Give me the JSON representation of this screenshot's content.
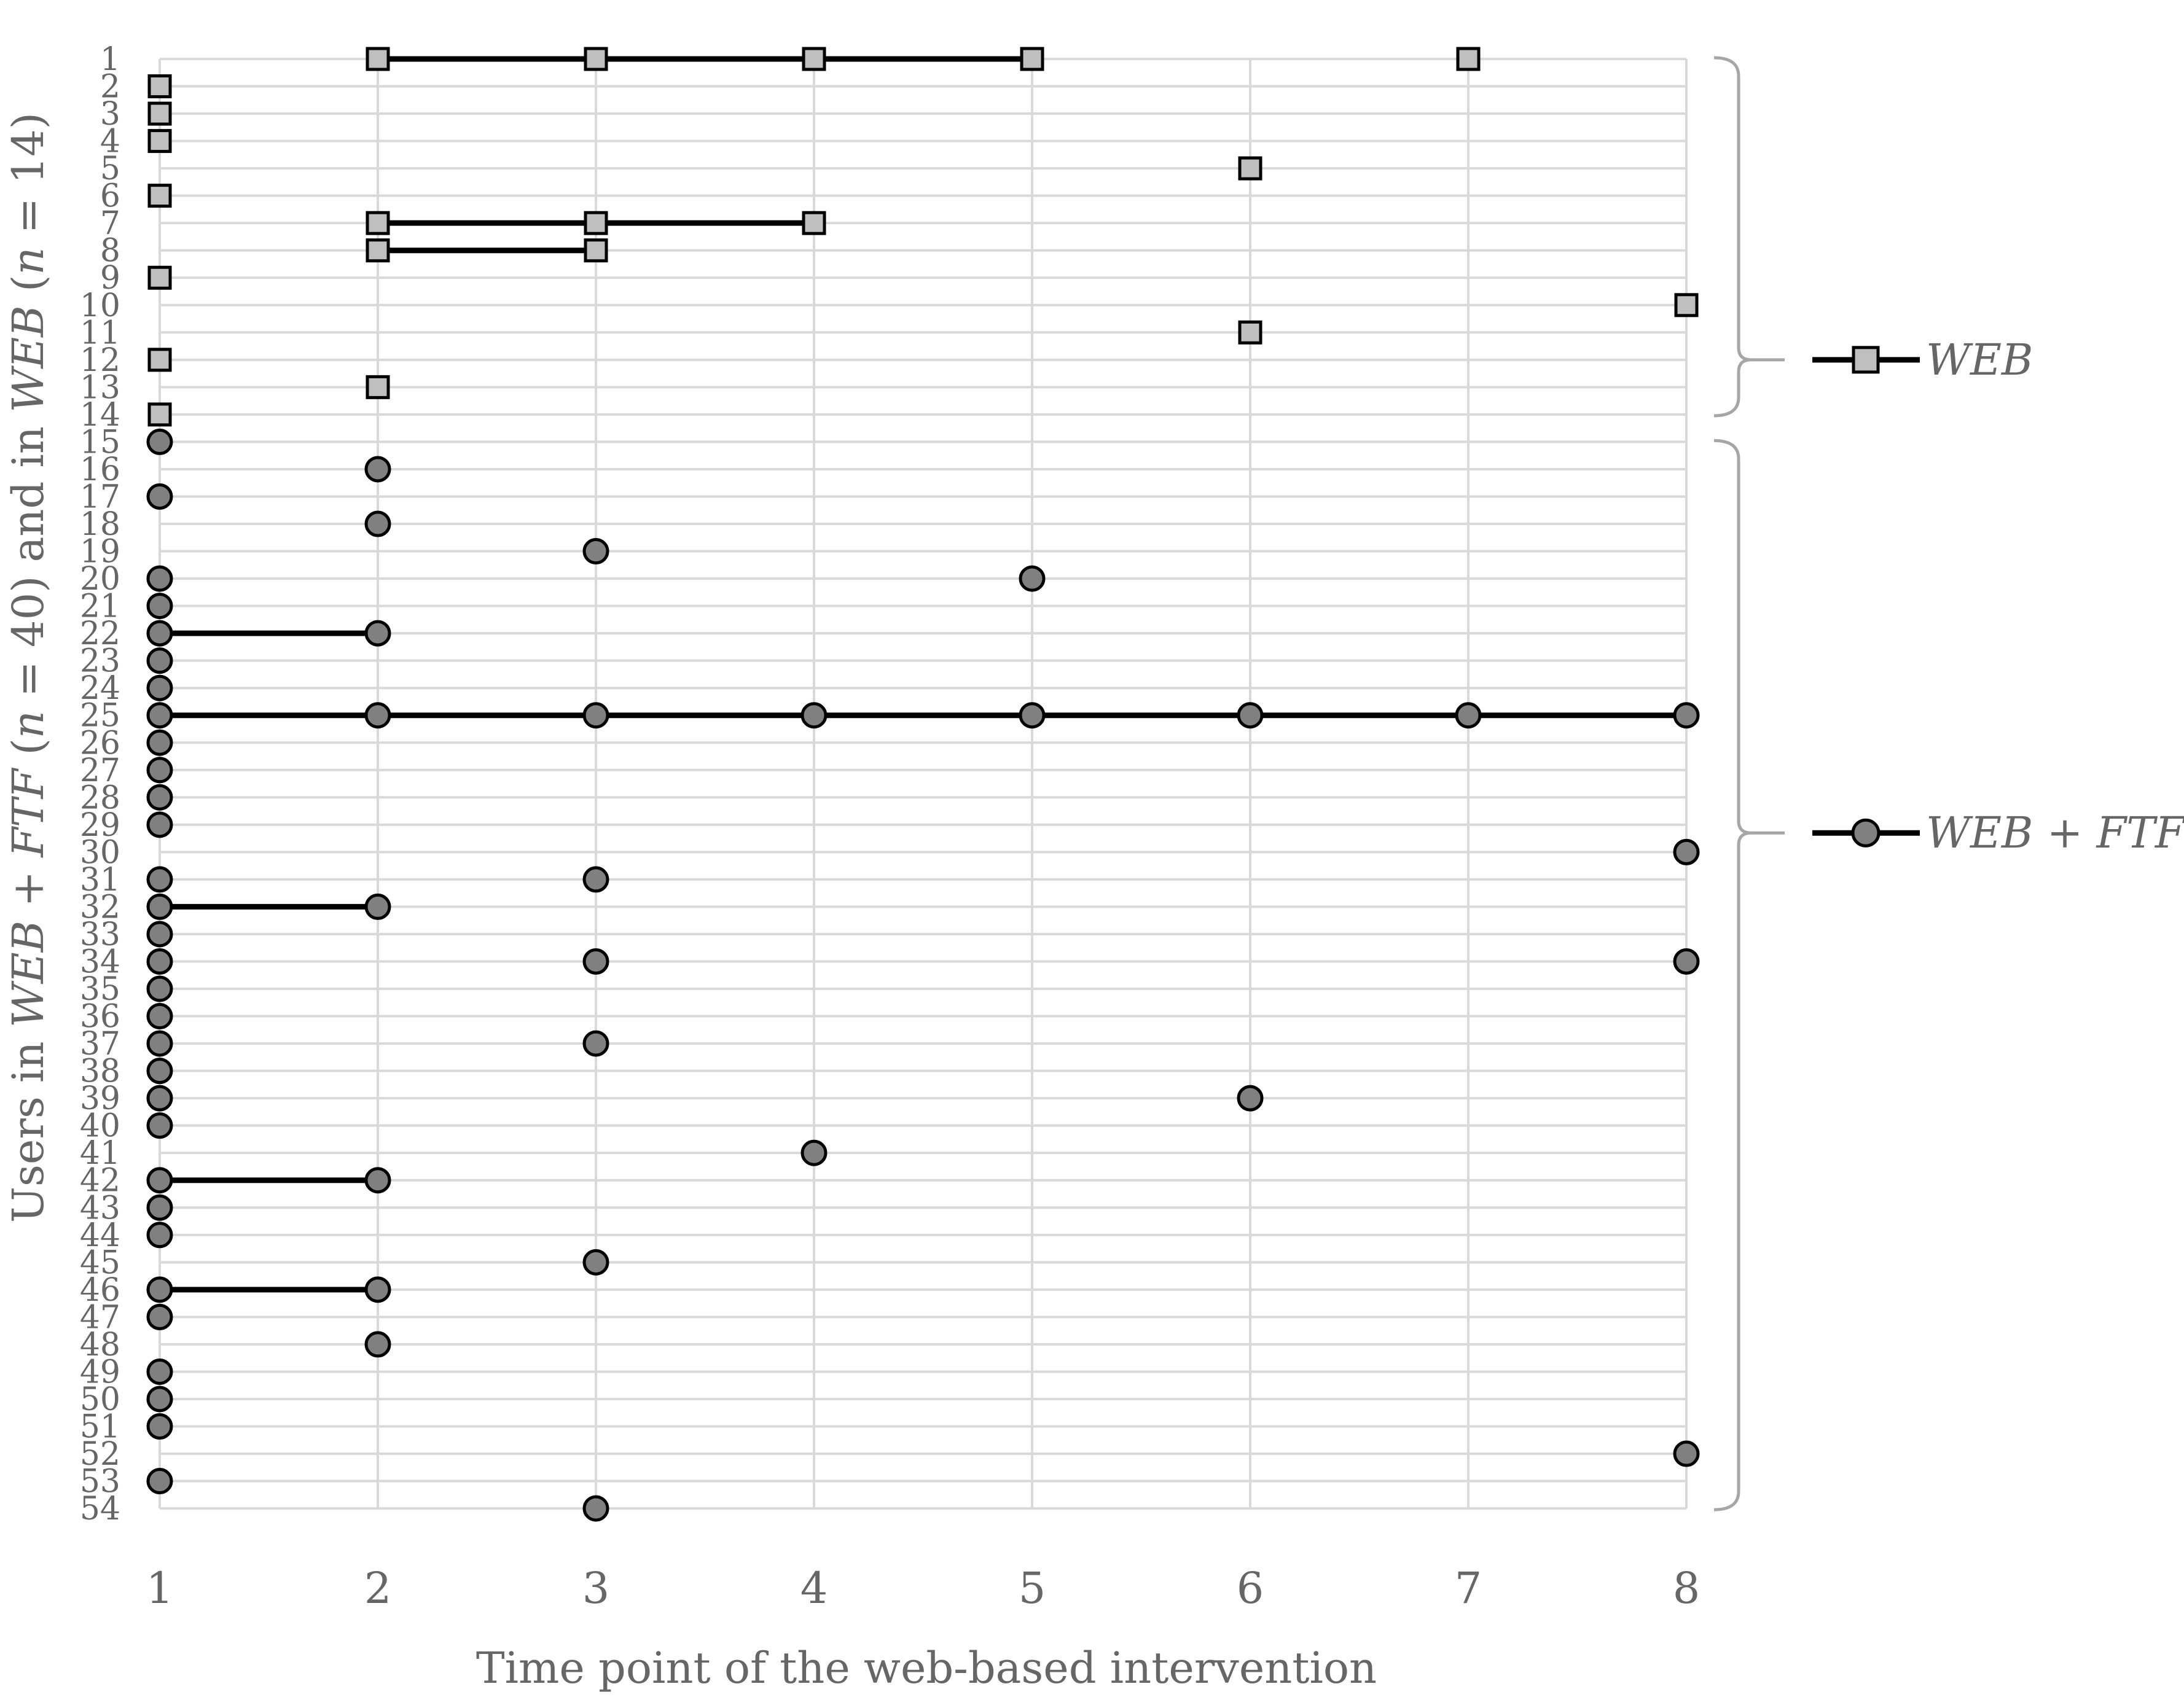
{
  "chart_data": {
    "type": "scatter",
    "xlabel": "Time point of the web-based intervention",
    "ylabel_parts": [
      {
        "text": "Users in ",
        "italic": false
      },
      {
        "text": "WEB",
        "italic": true
      },
      {
        "text": " + ",
        "italic": false
      },
      {
        "text": "FTF",
        "italic": true
      },
      {
        "text": " (",
        "italic": false
      },
      {
        "text": "n",
        "italic": true
      },
      {
        "text": " = 40) and in ",
        "italic": false
      },
      {
        "text": "WEB",
        "italic": true
      },
      {
        "text": " (",
        "italic": false
      },
      {
        "text": "n",
        "italic": true
      },
      {
        "text": " = 14)",
        "italic": false
      }
    ],
    "x_ticks": [
      "1",
      "2",
      "3",
      "4",
      "5",
      "6",
      "7",
      "8"
    ],
    "xlim": [
      1,
      8
    ],
    "y_ticks": [
      "1",
      "2",
      "3",
      "4",
      "5",
      "6",
      "7",
      "8",
      "9",
      "10",
      "11",
      "12",
      "13",
      "14",
      "15",
      "16",
      "17",
      "18",
      "19",
      "20",
      "21",
      "22",
      "23",
      "24",
      "25",
      "26",
      "27",
      "28",
      "29",
      "30",
      "31",
      "32",
      "33",
      "34",
      "35",
      "36",
      "37",
      "38",
      "39",
      "40",
      "41",
      "42",
      "43",
      "44",
      "45",
      "46",
      "47",
      "48",
      "49",
      "50",
      "51",
      "52",
      "53",
      "54"
    ],
    "ylim": [
      1,
      54
    ],
    "y_inverted": true,
    "grid": true,
    "legend_placement": "right",
    "series": [
      {
        "name": "WEB",
        "marker": "square",
        "fill": "#bfbfbf",
        "users": [
          {
            "user": 1,
            "x": [
              2,
              3,
              4,
              5,
              7
            ],
            "connected": [
              2,
              5
            ]
          },
          {
            "user": 2,
            "x": [
              1
            ]
          },
          {
            "user": 3,
            "x": [
              1
            ]
          },
          {
            "user": 4,
            "x": [
              1
            ]
          },
          {
            "user": 5,
            "x": [
              6
            ]
          },
          {
            "user": 6,
            "x": [
              1
            ]
          },
          {
            "user": 7,
            "x": [
              2,
              3,
              4
            ],
            "connected": [
              2,
              4
            ]
          },
          {
            "user": 8,
            "x": [
              2,
              3
            ],
            "connected": [
              2,
              3
            ]
          },
          {
            "user": 9,
            "x": [
              1
            ]
          },
          {
            "user": 10,
            "x": [
              8
            ]
          },
          {
            "user": 11,
            "x": [
              6
            ]
          },
          {
            "user": 12,
            "x": [
              1
            ]
          },
          {
            "user": 13,
            "x": [
              2
            ]
          },
          {
            "user": 14,
            "x": [
              1
            ]
          }
        ]
      },
      {
        "name": "WEB + FTF",
        "marker": "circle",
        "fill": "#808080",
        "users": [
          {
            "user": 15,
            "x": [
              1
            ]
          },
          {
            "user": 16,
            "x": [
              2
            ]
          },
          {
            "user": 17,
            "x": [
              1
            ]
          },
          {
            "user": 18,
            "x": [
              2
            ]
          },
          {
            "user": 19,
            "x": [
              3
            ]
          },
          {
            "user": 20,
            "x": [
              1,
              5
            ]
          },
          {
            "user": 21,
            "x": [
              1
            ]
          },
          {
            "user": 22,
            "x": [
              1,
              2
            ],
            "connected": [
              1,
              2
            ]
          },
          {
            "user": 23,
            "x": [
              1
            ]
          },
          {
            "user": 24,
            "x": [
              1
            ]
          },
          {
            "user": 25,
            "x": [
              1,
              2,
              3,
              4,
              5,
              6,
              7,
              8
            ],
            "connected": [
              1,
              8
            ]
          },
          {
            "user": 26,
            "x": [
              1
            ]
          },
          {
            "user": 27,
            "x": [
              1
            ]
          },
          {
            "user": 28,
            "x": [
              1
            ]
          },
          {
            "user": 29,
            "x": [
              1
            ]
          },
          {
            "user": 30,
            "x": [
              8
            ]
          },
          {
            "user": 31,
            "x": [
              1,
              3
            ]
          },
          {
            "user": 32,
            "x": [
              1,
              2
            ],
            "connected": [
              1,
              2
            ]
          },
          {
            "user": 33,
            "x": [
              1
            ]
          },
          {
            "user": 34,
            "x": [
              1,
              3,
              8
            ]
          },
          {
            "user": 35,
            "x": [
              1
            ]
          },
          {
            "user": 36,
            "x": [
              1
            ]
          },
          {
            "user": 37,
            "x": [
              1,
              3
            ]
          },
          {
            "user": 38,
            "x": [
              1
            ]
          },
          {
            "user": 39,
            "x": [
              1,
              6
            ]
          },
          {
            "user": 40,
            "x": [
              1
            ]
          },
          {
            "user": 41,
            "x": [
              4
            ]
          },
          {
            "user": 42,
            "x": [
              1,
              2
            ],
            "connected": [
              1,
              2
            ]
          },
          {
            "user": 43,
            "x": [
              1
            ]
          },
          {
            "user": 44,
            "x": [
              1
            ]
          },
          {
            "user": 45,
            "x": [
              3
            ]
          },
          {
            "user": 46,
            "x": [
              1,
              2
            ],
            "connected": [
              1,
              2
            ]
          },
          {
            "user": 47,
            "x": [
              1
            ]
          },
          {
            "user": 48,
            "x": [
              2
            ]
          },
          {
            "user": 49,
            "x": [
              1
            ]
          },
          {
            "user": 50,
            "x": [
              1
            ]
          },
          {
            "user": 51,
            "x": [
              1
            ]
          },
          {
            "user": 52,
            "x": [
              8
            ]
          },
          {
            "user": 53,
            "x": [
              1
            ]
          },
          {
            "user": 54,
            "x": [
              3
            ]
          }
        ]
      }
    ],
    "legend": [
      {
        "label": "WEB",
        "marker": "square",
        "group_users": [
          1,
          14
        ]
      },
      {
        "label": "WEB + FTF",
        "marker": "circle",
        "group_users": [
          15,
          54
        ]
      }
    ]
  }
}
